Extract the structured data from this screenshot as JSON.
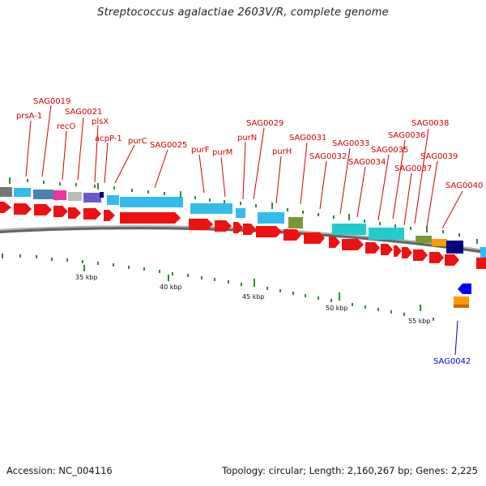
{
  "title": "Streptococcus agalactiae 2603V/R, complete genome",
  "footer": {
    "accession": "Accession: NC_004116",
    "summary": "Topology: circular; Length: 2,160,267 bp; Genes: 2,225"
  },
  "colors": {
    "forward_gene": "#ee1111",
    "backbone": "#8c8c8c",
    "tick": "#2f8a2f",
    "label_red": "#cc0000",
    "label_blue": "#0000cc",
    "cog_light_blue": "#33bbee",
    "cog_cyan": "#22cccc",
    "cog_olive": "#779933",
    "cog_magenta": "#ee3399",
    "cog_purple": "#6a5acd",
    "cog_navy": "#000080",
    "cog_orange": "#ff9900",
    "reverse_gene": "#0000ff"
  },
  "kbp_labels": [
    "35 kbp",
    "40 kbp",
    "45 kbp",
    "50 kbp",
    "55 kbp"
  ],
  "gene_labels": [
    "SAG0019",
    "prsA-1",
    "SAG0021",
    "recO",
    "plsX",
    "acpP-1",
    "purC",
    "SAG0025",
    "purF",
    "purM",
    "purN",
    "SAG0029",
    "purH",
    "SAG0031",
    "SAG0032",
    "SAG0033",
    "SAG0034",
    "SAG0035",
    "SAG0036",
    "SAG0037",
    "SAG0038",
    "SAG0039",
    "SAG0040",
    "SAG0042"
  ]
}
